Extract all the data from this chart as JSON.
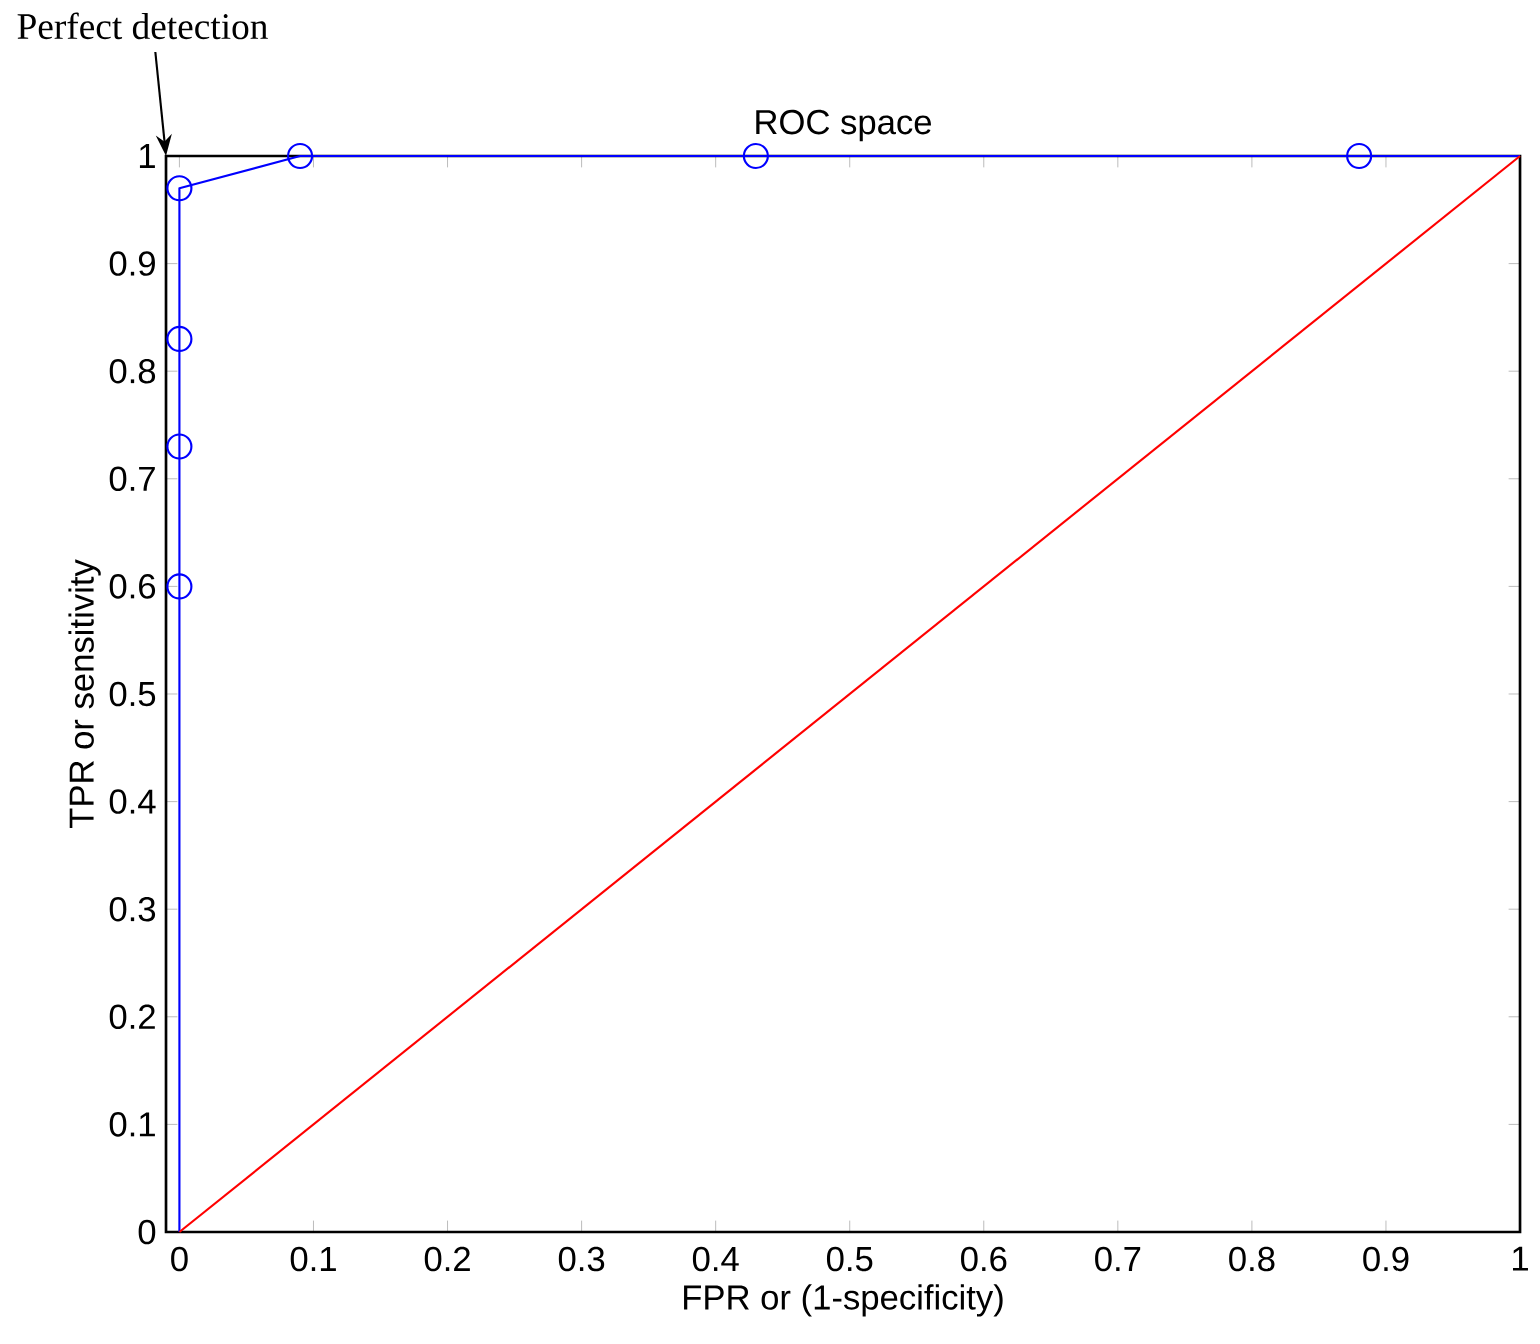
{
  "chart_data": {
    "type": "line",
    "title": "ROC space",
    "xlabel": "FPR or (1-specificity)",
    "ylabel": "TPR or sensitivity",
    "annotations": [
      "Perfect detection"
    ],
    "series": [
      {
        "color": "#0000ff",
        "marker": "none",
        "x": [
          0,
          0,
          0,
          0,
          0,
          0.09,
          0.43,
          0.88,
          1
        ],
        "values": [
          0,
          0.6,
          0.73,
          0.83,
          0.97,
          1,
          1,
          1,
          1
        ]
      },
      {
        "type": "scatter",
        "color": "#0000ff",
        "marker": "circle",
        "x": [
          0,
          0,
          0,
          0,
          0.09,
          0.43,
          0.88
        ],
        "values": [
          0.6,
          0.73,
          0.83,
          0.97,
          1,
          1,
          1
        ]
      },
      {
        "color": "#ff0000",
        "marker": "none",
        "x": [
          0,
          1
        ],
        "values": [
          0,
          1
        ]
      }
    ],
    "xlim": [
      -0.01,
      1
    ],
    "ylim": [
      0,
      1
    ],
    "xticks": [
      0,
      0.1,
      0.2,
      0.3,
      0.4,
      0.5,
      0.6,
      0.7,
      0.8,
      0.9,
      1
    ],
    "yticks": [
      0,
      0.1,
      0.2,
      0.3,
      0.4,
      0.5,
      0.6,
      0.7,
      0.8,
      0.9,
      1
    ],
    "grid": false
  }
}
